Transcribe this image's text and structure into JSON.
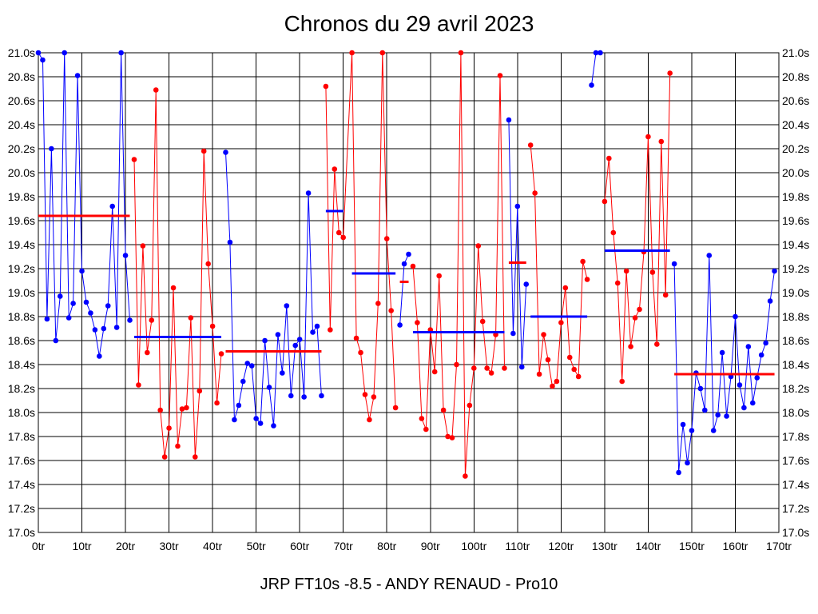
{
  "chart_data": {
    "type": "line",
    "title": "Chronos du 29 avril 2023",
    "footer": "JRP FT10s -8.5 - ANDY RENAUD - Pro10",
    "xlim": [
      0,
      170
    ],
    "ylim": [
      17.0,
      21.0
    ],
    "grid": true,
    "x_ticks": [
      "0tr",
      "10tr",
      "20tr",
      "30tr",
      "40tr",
      "50tr",
      "60tr",
      "70tr",
      "80tr",
      "90tr",
      "100tr",
      "110tr",
      "120tr",
      "130tr",
      "140tr",
      "150tr",
      "160tr",
      "170tr"
    ],
    "y_ticks": [
      "17.0s",
      "17.2s",
      "17.4s",
      "17.6s",
      "17.8s",
      "18.0s",
      "18.2s",
      "18.4s",
      "18.6s",
      "18.8s",
      "19.0s",
      "19.2s",
      "19.4s",
      "19.6s",
      "19.8s",
      "20.0s",
      "20.2s",
      "20.4s",
      "20.6s",
      "20.8s",
      "21.0s"
    ],
    "colors": {
      "blue": "#0000ff",
      "red": "#ff0000",
      "grid": "#000000"
    },
    "series": [
      {
        "color": "#0000ff",
        "x": [
          0,
          1,
          2,
          3,
          4,
          5,
          6,
          7,
          8,
          9,
          10,
          11,
          12,
          13,
          14,
          15,
          16,
          17,
          18,
          19,
          20,
          21
        ],
        "values": [
          21.0,
          20.94,
          18.78,
          20.2,
          18.6,
          18.97,
          21.0,
          18.79,
          18.91,
          20.81,
          19.18,
          18.92,
          18.83,
          18.69,
          18.47,
          18.7,
          18.89,
          19.72,
          18.71,
          21.0,
          19.31,
          18.77
        ]
      },
      {
        "color": "#ff0000",
        "x": [
          22,
          23,
          24,
          25,
          26,
          27,
          28,
          29,
          30,
          31,
          32,
          33,
          34,
          35,
          36,
          37,
          38,
          39,
          40,
          41,
          42
        ],
        "values": [
          20.11,
          18.23,
          19.39,
          18.5,
          18.77,
          20.69,
          18.02,
          17.63,
          17.87,
          19.04,
          17.72,
          18.03,
          18.04,
          18.79,
          17.63,
          18.18,
          20.18,
          19.24,
          18.72,
          18.08,
          18.49
        ]
      },
      {
        "color": "#0000ff",
        "x": [
          43,
          44,
          45,
          46,
          47,
          48,
          49,
          50,
          51,
          52,
          53,
          54,
          55,
          56,
          57,
          58,
          59,
          60,
          61,
          62,
          63,
          64,
          65
        ],
        "values": [
          20.17,
          19.42,
          17.94,
          18.06,
          18.26,
          18.41,
          18.39,
          17.95,
          17.91,
          18.6,
          18.21,
          17.89,
          18.65,
          18.33,
          18.89,
          18.14,
          18.56,
          18.61,
          18.13,
          19.83,
          18.67,
          18.72,
          18.14
        ]
      },
      {
        "color": "#ff0000",
        "x": [
          66,
          67,
          68,
          69,
          70,
          72,
          73,
          74,
          75,
          76,
          77,
          78,
          79,
          80,
          81,
          82
        ],
        "values": [
          20.72,
          18.69,
          20.03,
          19.5,
          19.46,
          21.0,
          18.62,
          18.5,
          18.15,
          17.94,
          18.13,
          18.91,
          21.0,
          19.45,
          18.85,
          18.04
        ]
      },
      {
        "color": "#0000ff",
        "x": [
          83,
          84,
          85
        ],
        "values": [
          18.73,
          19.24,
          19.32
        ]
      },
      {
        "color": "#ff0000",
        "x": [
          86,
          87,
          88,
          89,
          90,
          91,
          92,
          93,
          94,
          95,
          96,
          97,
          98,
          99,
          100,
          101,
          102,
          103,
          104,
          105,
          106,
          107
        ],
        "values": [
          19.22,
          18.75,
          17.95,
          17.86,
          18.69,
          18.34,
          19.14,
          18.02,
          17.8,
          17.79,
          18.4,
          21.0,
          17.47,
          18.06,
          18.37,
          19.39,
          18.76,
          18.37,
          18.33,
          18.65,
          20.81,
          18.37
        ]
      },
      {
        "color": "#0000ff",
        "x": [
          108,
          109,
          110,
          111,
          112
        ],
        "values": [
          20.44,
          18.66,
          19.72,
          18.38,
          19.07
        ]
      },
      {
        "color": "#ff0000",
        "x": [
          113,
          114,
          115,
          116,
          117,
          118,
          119,
          120,
          121,
          122,
          123,
          124,
          125,
          126
        ],
        "values": [
          20.23,
          19.83,
          18.32,
          18.65,
          18.44,
          18.22,
          18.26,
          18.75,
          19.04,
          18.46,
          18.36,
          18.3,
          19.26,
          19.11
        ]
      },
      {
        "color": "#0000ff",
        "x": [
          127,
          128,
          129
        ],
        "values": [
          20.73,
          21.0,
          21.0
        ]
      },
      {
        "color": "#ff0000",
        "x": [
          130,
          131,
          132,
          133,
          134,
          135,
          136,
          137,
          138,
          139,
          140,
          141,
          142,
          143,
          144,
          145
        ],
        "values": [
          19.76,
          20.12,
          19.5,
          19.08,
          18.26,
          19.18,
          18.55,
          18.79,
          18.86,
          19.34,
          20.3,
          19.17,
          18.57,
          20.26,
          18.98,
          20.83
        ]
      },
      {
        "color": "#0000ff",
        "x": [
          146,
          147,
          148,
          149,
          150,
          151,
          152,
          153,
          154,
          155,
          156,
          157,
          158,
          159,
          160,
          161,
          162,
          163,
          164,
          165,
          166,
          167,
          168,
          169
        ],
        "values": [
          19.24,
          17.5,
          17.9,
          17.58,
          17.85,
          18.33,
          18.2,
          18.02,
          19.31,
          17.85,
          17.98,
          18.5,
          17.97,
          18.3,
          18.8,
          18.23,
          18.04,
          18.55,
          18.08,
          18.29,
          18.48,
          18.58,
          18.93,
          19.18
        ]
      }
    ],
    "averages": [
      {
        "color": "#ff0000",
        "x": [
          0,
          21
        ],
        "value": 19.64
      },
      {
        "color": "#0000ff",
        "x": [
          22,
          42
        ],
        "value": 18.63
      },
      {
        "color": "#ff0000",
        "x": [
          43,
          65
        ],
        "value": 18.51
      },
      {
        "color": "#0000ff",
        "x": [
          66,
          70
        ],
        "value": 19.68
      },
      {
        "color": "#0000ff",
        "x": [
          72,
          82
        ],
        "value": 19.16
      },
      {
        "color": "#ff0000",
        "x": [
          83,
          85
        ],
        "value": 19.09
      },
      {
        "color": "#0000ff",
        "x": [
          86,
          107
        ],
        "value": 18.67
      },
      {
        "color": "#ff0000",
        "x": [
          108,
          112
        ],
        "value": 19.25
      },
      {
        "color": "#0000ff",
        "x": [
          113,
          126
        ],
        "value": 18.8
      },
      {
        "color": "#0000ff",
        "x": [
          130,
          145
        ],
        "value": 19.35
      },
      {
        "color": "#ff0000",
        "x": [
          146,
          169
        ],
        "value": 18.32
      }
    ]
  }
}
